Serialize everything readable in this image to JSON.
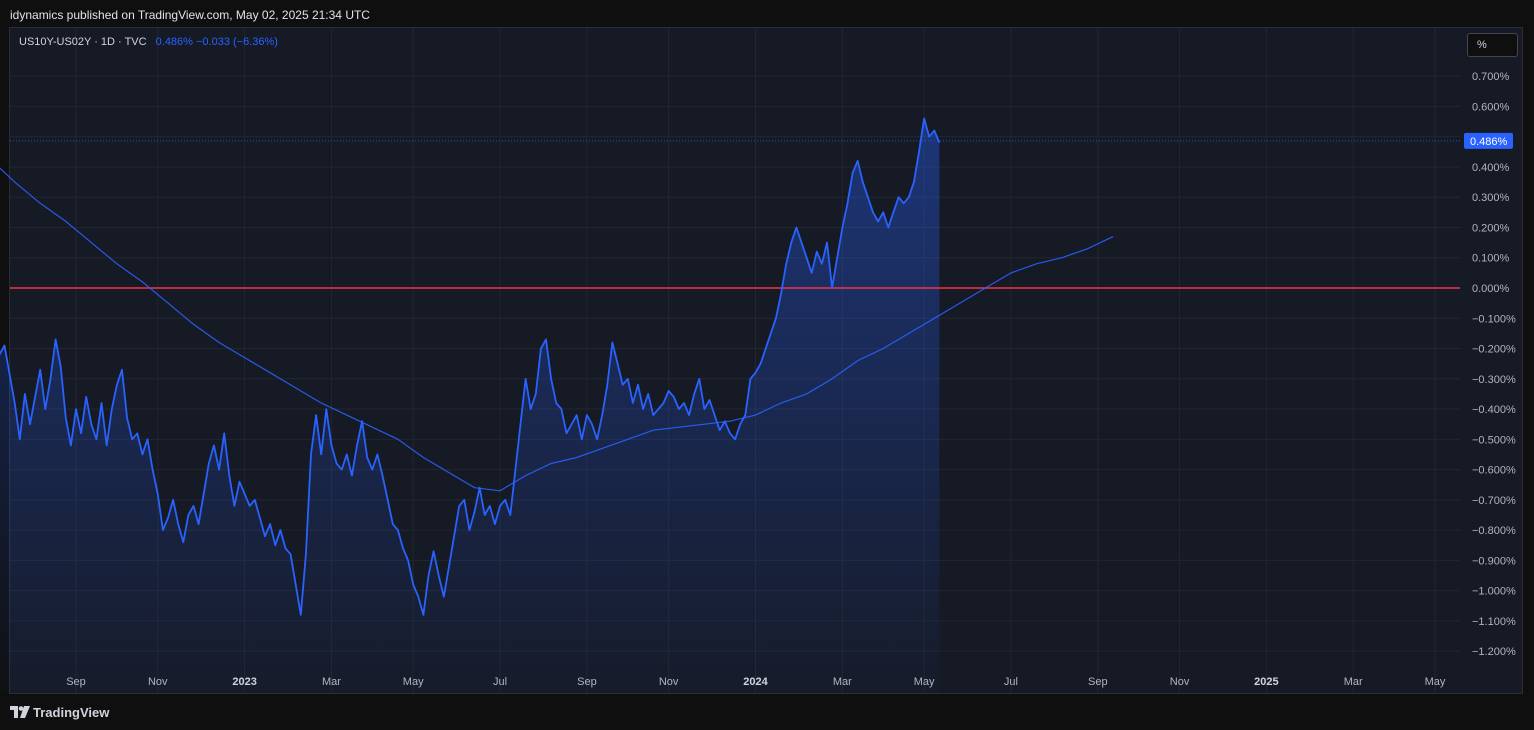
{
  "header": {
    "text": "idynamics published on TradingView.com, May 02, 2025 21:34 UTC"
  },
  "legend": {
    "symbol": "US10Y-US02Y · 1D · TVC",
    "values": "0.486%  −0.033 (−6.36%)"
  },
  "scale_button": {
    "label": "%"
  },
  "footer": {
    "logo_text": "TradingView"
  },
  "colors": {
    "line": "#2962ff",
    "zero_line": "#f23645",
    "background": "#161a25",
    "page": "#0f0f0f"
  },
  "chart_data": {
    "type": "line",
    "title": "",
    "xlabel": "",
    "ylabel": "",
    "ylim": [
      -1.2,
      0.7
    ],
    "y_ticks": [
      "0.700%",
      "0.600%",
      "0.500%",
      "0.400%",
      "0.300%",
      "0.200%",
      "0.100%",
      "0.000%",
      "−0.100%",
      "−0.200%",
      "−0.300%",
      "−0.400%",
      "−0.500%",
      "−0.600%",
      "−0.700%",
      "−0.800%",
      "−0.900%",
      "−1.000%",
      "−1.100%",
      "−1.200%"
    ],
    "x_ticks": [
      {
        "label": "Sep",
        "x": 2022.67,
        "bold": false
      },
      {
        "label": "Nov",
        "x": 2022.83,
        "bold": false
      },
      {
        "label": "2023",
        "x": 2023.0,
        "bold": true
      },
      {
        "label": "Mar",
        "x": 2023.17,
        "bold": false
      },
      {
        "label": "May",
        "x": 2023.33,
        "bold": false
      },
      {
        "label": "Jul",
        "x": 2023.5,
        "bold": false
      },
      {
        "label": "Sep",
        "x": 2023.67,
        "bold": false
      },
      {
        "label": "Nov",
        "x": 2023.83,
        "bold": false
      },
      {
        "label": "2024",
        "x": 2024.0,
        "bold": true
      },
      {
        "label": "Mar",
        "x": 2024.17,
        "bold": false
      },
      {
        "label": "May",
        "x": 2024.33,
        "bold": false
      },
      {
        "label": "Jul",
        "x": 2024.5,
        "bold": false
      },
      {
        "label": "Sep",
        "x": 2024.67,
        "bold": false
      },
      {
        "label": "Nov",
        "x": 2024.83,
        "bold": false
      },
      {
        "label": "2025",
        "x": 2025.0,
        "bold": true
      },
      {
        "label": "Mar",
        "x": 2025.17,
        "bold": false
      },
      {
        "label": "May",
        "x": 2025.33,
        "bold": false
      }
    ],
    "last_value_label": "0.486%",
    "last_value": 0.486,
    "reference_line": 0.0,
    "series": [
      {
        "values": [
          [
            2022.5,
            -0.2
          ],
          [
            2022.52,
            -0.22
          ],
          [
            2022.53,
            -0.19
          ],
          [
            2022.55,
            -0.38
          ],
          [
            2022.56,
            -0.5
          ],
          [
            2022.57,
            -0.35
          ],
          [
            2022.58,
            -0.45
          ],
          [
            2022.6,
            -0.27
          ],
          [
            2022.61,
            -0.4
          ],
          [
            2022.62,
            -0.3
          ],
          [
            2022.63,
            -0.17
          ],
          [
            2022.64,
            -0.26
          ],
          [
            2022.65,
            -0.43
          ],
          [
            2022.66,
            -0.52
          ],
          [
            2022.67,
            -0.4
          ],
          [
            2022.68,
            -0.48
          ],
          [
            2022.69,
            -0.36
          ],
          [
            2022.7,
            -0.45
          ],
          [
            2022.71,
            -0.5
          ],
          [
            2022.72,
            -0.38
          ],
          [
            2022.73,
            -0.52
          ],
          [
            2022.74,
            -0.4
          ],
          [
            2022.75,
            -0.32
          ],
          [
            2022.76,
            -0.27
          ],
          [
            2022.77,
            -0.43
          ],
          [
            2022.78,
            -0.5
          ],
          [
            2022.79,
            -0.48
          ],
          [
            2022.8,
            -0.55
          ],
          [
            2022.81,
            -0.5
          ],
          [
            2022.82,
            -0.6
          ],
          [
            2022.83,
            -0.68
          ],
          [
            2022.84,
            -0.8
          ],
          [
            2022.85,
            -0.76
          ],
          [
            2022.86,
            -0.7
          ],
          [
            2022.87,
            -0.78
          ],
          [
            2022.88,
            -0.84
          ],
          [
            2022.89,
            -0.75
          ],
          [
            2022.9,
            -0.72
          ],
          [
            2022.91,
            -0.78
          ],
          [
            2022.92,
            -0.68
          ],
          [
            2022.93,
            -0.58
          ],
          [
            2022.94,
            -0.52
          ],
          [
            2022.95,
            -0.6
          ],
          [
            2022.96,
            -0.48
          ],
          [
            2022.97,
            -0.62
          ],
          [
            2022.98,
            -0.72
          ],
          [
            2022.99,
            -0.64
          ],
          [
            2023.0,
            -0.68
          ],
          [
            2023.01,
            -0.72
          ],
          [
            2023.02,
            -0.7
          ],
          [
            2023.03,
            -0.76
          ],
          [
            2023.04,
            -0.82
          ],
          [
            2023.05,
            -0.78
          ],
          [
            2023.06,
            -0.85
          ],
          [
            2023.07,
            -0.8
          ],
          [
            2023.08,
            -0.86
          ],
          [
            2023.09,
            -0.88
          ],
          [
            2023.1,
            -0.98
          ],
          [
            2023.11,
            -1.08
          ],
          [
            2023.12,
            -0.88
          ],
          [
            2023.13,
            -0.55
          ],
          [
            2023.14,
            -0.42
          ],
          [
            2023.15,
            -0.55
          ],
          [
            2023.16,
            -0.4
          ],
          [
            2023.17,
            -0.52
          ],
          [
            2023.18,
            -0.58
          ],
          [
            2023.19,
            -0.6
          ],
          [
            2023.2,
            -0.55
          ],
          [
            2023.21,
            -0.62
          ],
          [
            2023.22,
            -0.52
          ],
          [
            2023.23,
            -0.44
          ],
          [
            2023.24,
            -0.56
          ],
          [
            2023.25,
            -0.6
          ],
          [
            2023.26,
            -0.55
          ],
          [
            2023.27,
            -0.62
          ],
          [
            2023.28,
            -0.7
          ],
          [
            2023.29,
            -0.78
          ],
          [
            2023.3,
            -0.8
          ],
          [
            2023.31,
            -0.86
          ],
          [
            2023.32,
            -0.9
          ],
          [
            2023.33,
            -0.98
          ],
          [
            2023.34,
            -1.02
          ],
          [
            2023.35,
            -1.08
          ],
          [
            2023.36,
            -0.95
          ],
          [
            2023.37,
            -0.87
          ],
          [
            2023.38,
            -0.95
          ],
          [
            2023.39,
            -1.02
          ],
          [
            2023.4,
            -0.92
          ],
          [
            2023.41,
            -0.82
          ],
          [
            2023.42,
            -0.72
          ],
          [
            2023.43,
            -0.7
          ],
          [
            2023.44,
            -0.8
          ],
          [
            2023.45,
            -0.74
          ],
          [
            2023.46,
            -0.66
          ],
          [
            2023.47,
            -0.75
          ],
          [
            2023.48,
            -0.72
          ],
          [
            2023.49,
            -0.78
          ],
          [
            2023.5,
            -0.72
          ],
          [
            2023.51,
            -0.7
          ],
          [
            2023.52,
            -0.75
          ],
          [
            2023.53,
            -0.6
          ],
          [
            2023.54,
            -0.45
          ],
          [
            2023.55,
            -0.3
          ],
          [
            2023.56,
            -0.4
          ],
          [
            2023.57,
            -0.35
          ],
          [
            2023.58,
            -0.2
          ],
          [
            2023.59,
            -0.17
          ],
          [
            2023.6,
            -0.3
          ],
          [
            2023.61,
            -0.38
          ],
          [
            2023.62,
            -0.4
          ],
          [
            2023.63,
            -0.48
          ],
          [
            2023.64,
            -0.45
          ],
          [
            2023.65,
            -0.42
          ],
          [
            2023.66,
            -0.5
          ],
          [
            2023.67,
            -0.42
          ],
          [
            2023.68,
            -0.45
          ],
          [
            2023.69,
            -0.5
          ],
          [
            2023.7,
            -0.42
          ],
          [
            2023.71,
            -0.32
          ],
          [
            2023.72,
            -0.18
          ],
          [
            2023.73,
            -0.25
          ],
          [
            2023.74,
            -0.32
          ],
          [
            2023.75,
            -0.3
          ],
          [
            2023.76,
            -0.38
          ],
          [
            2023.77,
            -0.32
          ],
          [
            2023.78,
            -0.4
          ],
          [
            2023.79,
            -0.35
          ],
          [
            2023.8,
            -0.42
          ],
          [
            2023.81,
            -0.4
          ],
          [
            2023.82,
            -0.38
          ],
          [
            2023.83,
            -0.34
          ],
          [
            2023.84,
            -0.36
          ],
          [
            2023.85,
            -0.4
          ],
          [
            2023.86,
            -0.38
          ],
          [
            2023.87,
            -0.42
          ],
          [
            2023.88,
            -0.35
          ],
          [
            2023.89,
            -0.3
          ],
          [
            2023.9,
            -0.4
          ],
          [
            2023.91,
            -0.37
          ],
          [
            2023.92,
            -0.42
          ],
          [
            2023.93,
            -0.47
          ],
          [
            2023.94,
            -0.44
          ],
          [
            2023.95,
            -0.48
          ],
          [
            2023.96,
            -0.5
          ],
          [
            2023.97,
            -0.45
          ],
          [
            2023.98,
            -0.42
          ],
          [
            2023.99,
            -0.3
          ],
          [
            2024.0,
            -0.28
          ],
          [
            2024.01,
            -0.25
          ],
          [
            2024.02,
            -0.2
          ],
          [
            2024.03,
            -0.15
          ],
          [
            2024.04,
            -0.1
          ],
          [
            2024.05,
            -0.02
          ],
          [
            2024.06,
            0.08
          ],
          [
            2024.07,
            0.15
          ],
          [
            2024.08,
            0.2
          ],
          [
            2024.09,
            0.15
          ],
          [
            2024.1,
            0.1
          ],
          [
            2024.11,
            0.05
          ],
          [
            2024.12,
            0.12
          ],
          [
            2024.13,
            0.08
          ],
          [
            2024.14,
            0.15
          ],
          [
            2024.15,
            0.0
          ],
          [
            2024.16,
            0.1
          ],
          [
            2024.17,
            0.2
          ],
          [
            2024.18,
            0.28
          ],
          [
            2024.19,
            0.38
          ],
          [
            2024.2,
            0.42
          ],
          [
            2024.21,
            0.35
          ],
          [
            2024.22,
            0.3
          ],
          [
            2024.23,
            0.25
          ],
          [
            2024.24,
            0.22
          ],
          [
            2024.25,
            0.25
          ],
          [
            2024.26,
            0.2
          ],
          [
            2024.27,
            0.25
          ],
          [
            2024.28,
            0.3
          ],
          [
            2024.29,
            0.28
          ],
          [
            2024.3,
            0.3
          ],
          [
            2024.31,
            0.35
          ],
          [
            2024.32,
            0.45
          ],
          [
            2024.33,
            0.56
          ],
          [
            2024.34,
            0.5
          ],
          [
            2024.35,
            0.52
          ],
          [
            2024.36,
            0.48
          ]
        ]
      },
      {
        "name": "",
        "values": [
          [
            2022.5,
            0.43
          ],
          [
            2022.55,
            0.35
          ],
          [
            2022.6,
            0.28
          ],
          [
            2022.65,
            0.22
          ],
          [
            2022.7,
            0.15
          ],
          [
            2022.75,
            0.08
          ],
          [
            2022.8,
            0.02
          ],
          [
            2022.85,
            -0.05
          ],
          [
            2022.9,
            -0.12
          ],
          [
            2022.95,
            -0.18
          ],
          [
            2023.0,
            -0.23
          ],
          [
            2023.05,
            -0.28
          ],
          [
            2023.1,
            -0.33
          ],
          [
            2023.15,
            -0.38
          ],
          [
            2023.2,
            -0.42
          ],
          [
            2023.25,
            -0.46
          ],
          [
            2023.3,
            -0.5
          ],
          [
            2023.35,
            -0.56
          ],
          [
            2023.4,
            -0.61
          ],
          [
            2023.45,
            -0.66
          ],
          [
            2023.5,
            -0.67
          ],
          [
            2023.55,
            -0.62
          ],
          [
            2023.6,
            -0.58
          ],
          [
            2023.65,
            -0.56
          ],
          [
            2023.7,
            -0.53
          ],
          [
            2023.75,
            -0.5
          ],
          [
            2023.8,
            -0.47
          ],
          [
            2023.85,
            -0.46
          ],
          [
            2023.9,
            -0.45
          ],
          [
            2023.95,
            -0.44
          ],
          [
            2024.0,
            -0.42
          ],
          [
            2024.05,
            -0.38
          ],
          [
            2024.1,
            -0.35
          ],
          [
            2024.15,
            -0.3
          ],
          [
            2024.2,
            -0.24
          ],
          [
            2024.25,
            -0.2
          ],
          [
            2024.3,
            -0.15
          ],
          [
            2024.35,
            -0.1
          ],
          [
            2024.4,
            -0.05
          ],
          [
            2024.45,
            0.0
          ],
          [
            2024.5,
            0.05
          ],
          [
            2024.55,
            0.08
          ],
          [
            2024.6,
            0.1
          ],
          [
            2024.65,
            0.13
          ],
          [
            2024.7,
            0.17
          ]
        ]
      }
    ]
  }
}
